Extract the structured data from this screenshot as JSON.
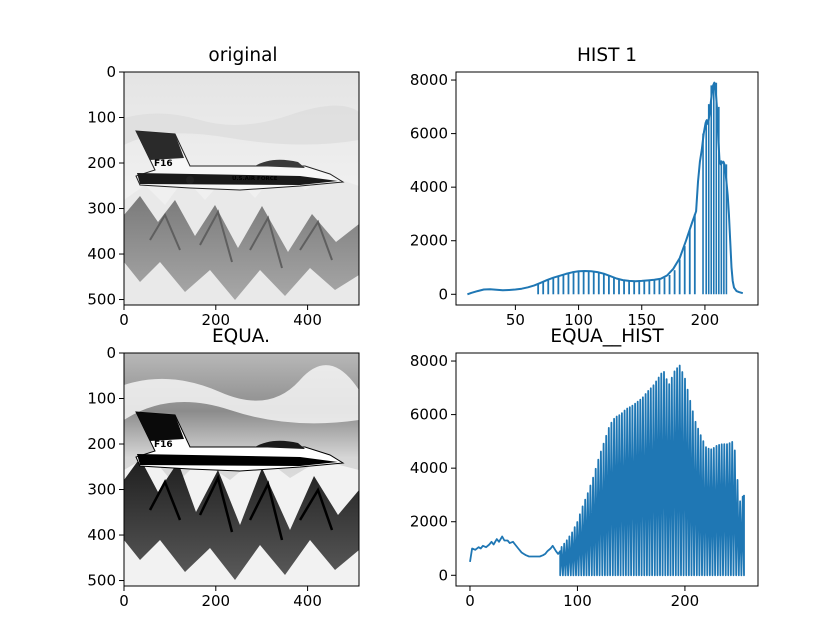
{
  "figure": {
    "background": "#ffffff",
    "line_color": "#1f77b4"
  },
  "chart_data": [
    {
      "type": "image",
      "title": "original",
      "image_content": "grayscale photo of an F-16 jet flying over snowy mountains (bright, low contrast)",
      "aircraft_text": "U.S.AIR FORCE",
      "tail_text": "F16",
      "xlim": [
        0,
        512
      ],
      "ylim": [
        512,
        0
      ],
      "xticks": [
        0,
        200,
        400
      ],
      "yticks": [
        0,
        100,
        200,
        300,
        400,
        500
      ],
      "tone": "light"
    },
    {
      "type": "line",
      "title": "HIST 1",
      "xlim": [
        3,
        242
      ],
      "ylim": [
        -400,
        8300
      ],
      "xticks": [
        50,
        100,
        150,
        200
      ],
      "yticks": [
        0,
        2000,
        4000,
        6000,
        8000
      ],
      "base_curve": [
        [
          12,
          0
        ],
        [
          15,
          50
        ],
        [
          20,
          120
        ],
        [
          25,
          180
        ],
        [
          30,
          190
        ],
        [
          35,
          170
        ],
        [
          40,
          150
        ],
        [
          45,
          160
        ],
        [
          50,
          180
        ],
        [
          55,
          210
        ],
        [
          60,
          260
        ],
        [
          65,
          330
        ],
        [
          70,
          430
        ],
        [
          75,
          530
        ],
        [
          80,
          620
        ],
        [
          85,
          690
        ],
        [
          90,
          760
        ],
        [
          95,
          820
        ],
        [
          100,
          860
        ],
        [
          105,
          870
        ],
        [
          110,
          860
        ],
        [
          115,
          830
        ],
        [
          120,
          770
        ],
        [
          125,
          680
        ],
        [
          130,
          590
        ],
        [
          135,
          530
        ],
        [
          140,
          500
        ],
        [
          145,
          490
        ],
        [
          150,
          500
        ],
        [
          155,
          520
        ],
        [
          160,
          540
        ],
        [
          165,
          580
        ],
        [
          170,
          700
        ],
        [
          175,
          950
        ],
        [
          180,
          1350
        ],
        [
          185,
          2000
        ],
        [
          190,
          2700
        ],
        [
          193,
          3100
        ]
      ],
      "spikes": [
        [
          68,
          400
        ],
        [
          72,
          480
        ],
        [
          76,
          550
        ],
        [
          80,
          620
        ],
        [
          84,
          680
        ],
        [
          88,
          740
        ],
        [
          92,
          790
        ],
        [
          96,
          830
        ],
        [
          100,
          860
        ],
        [
          104,
          870
        ],
        [
          108,
          860
        ],
        [
          112,
          840
        ],
        [
          116,
          800
        ],
        [
          120,
          760
        ],
        [
          124,
          700
        ],
        [
          128,
          620
        ],
        [
          132,
          560
        ],
        [
          136,
          520
        ],
        [
          140,
          500
        ],
        [
          144,
          490
        ],
        [
          148,
          495
        ],
        [
          152,
          505
        ],
        [
          156,
          520
        ],
        [
          160,
          540
        ],
        [
          164,
          570
        ],
        [
          168,
          620
        ],
        [
          172,
          720
        ],
        [
          176,
          900
        ],
        [
          180,
          1300
        ],
        [
          184,
          1800
        ],
        [
          188,
          2400
        ],
        [
          192,
          3000
        ]
      ],
      "peak_curve": [
        [
          193,
          3100
        ],
        [
          194.5,
          4200
        ],
        [
          196,
          4950
        ],
        [
          197.5,
          5400
        ],
        [
          199,
          6000
        ],
        [
          200.5,
          6400
        ],
        [
          201.5,
          6500
        ],
        [
          202.5,
          6350
        ],
        [
          203.5,
          6700
        ],
        [
          204.5,
          7100
        ],
        [
          205.5,
          7500
        ],
        [
          206.5,
          7800
        ],
        [
          207.5,
          7900
        ],
        [
          208.5,
          7600
        ],
        [
          209.5,
          7000
        ],
        [
          210.5,
          5900
        ],
        [
          211.5,
          5000
        ],
        [
          212.5,
          4850
        ],
        [
          213.5,
          4900
        ],
        [
          214.5,
          4950
        ],
        [
          215.5,
          4850
        ],
        [
          216.5,
          4450
        ],
        [
          218,
          3700
        ],
        [
          219,
          3000
        ],
        [
          220,
          2000
        ],
        [
          221,
          1000
        ],
        [
          222,
          500
        ],
        [
          223,
          250
        ],
        [
          225,
          120
        ],
        [
          227,
          80
        ],
        [
          230,
          40
        ]
      ],
      "peak_dips": [
        198.5,
        201,
        203,
        205,
        207,
        209,
        211,
        213,
        215,
        217
      ]
    },
    {
      "type": "image",
      "title": "EQUA.",
      "image_content": "histogram-equalized grayscale photo of the same F-16 (high contrast)",
      "aircraft_text": "U.S.AIR FORCE",
      "tail_text": "F16",
      "xlim": [
        0,
        512
      ],
      "ylim": [
        512,
        0
      ],
      "xticks": [
        0,
        200,
        400
      ],
      "yticks": [
        0,
        100,
        200,
        300,
        400,
        500
      ],
      "tone": "contrast"
    },
    {
      "type": "line",
      "title": "EQUA__HIST",
      "xlim": [
        -13,
        268
      ],
      "ylim": [
        -400,
        8300
      ],
      "xticks": [
        0,
        100,
        200
      ],
      "yticks": [
        0,
        2000,
        4000,
        6000,
        8000
      ],
      "noise_curve": [
        [
          0,
          500
        ],
        [
          2,
          1000
        ],
        [
          5,
          950
        ],
        [
          8,
          1050
        ],
        [
          10,
          1000
        ],
        [
          12,
          1100
        ],
        [
          15,
          1050
        ],
        [
          18,
          1150
        ],
        [
          20,
          1250
        ],
        [
          22,
          1150
        ],
        [
          25,
          1350
        ],
        [
          27,
          1250
        ],
        [
          30,
          1450
        ],
        [
          32,
          1300
        ],
        [
          35,
          1300
        ],
        [
          37,
          1200
        ],
        [
          40,
          1250
        ],
        [
          42,
          1150
        ],
        [
          45,
          1000
        ],
        [
          48,
          850
        ],
        [
          50,
          800
        ],
        [
          52,
          750
        ],
        [
          55,
          700
        ],
        [
          58,
          700
        ],
        [
          62,
          700
        ],
        [
          65,
          700
        ],
        [
          68,
          750
        ],
        [
          70,
          800
        ],
        [
          72,
          900
        ],
        [
          75,
          1000
        ],
        [
          77,
          1100
        ],
        [
          80,
          900
        ],
        [
          82,
          800
        ],
        [
          84,
          900
        ]
      ],
      "comb_envelope": [
        [
          84,
          1000
        ],
        [
          90,
          1300
        ],
        [
          95,
          1600
        ],
        [
          100,
          2000
        ],
        [
          105,
          2600
        ],
        [
          110,
          3100
        ],
        [
          115,
          3700
        ],
        [
          120,
          4400
        ],
        [
          125,
          5000
        ],
        [
          130,
          5600
        ],
        [
          135,
          5900
        ],
        [
          140,
          6000
        ],
        [
          145,
          6200
        ],
        [
          150,
          6300
        ],
        [
          155,
          6450
        ],
        [
          160,
          6600
        ],
        [
          165,
          6850
        ],
        [
          170,
          7050
        ],
        [
          175,
          7350
        ],
        [
          180,
          7650
        ],
        [
          185,
          7100
        ],
        [
          190,
          7600
        ],
        [
          195,
          7850
        ],
        [
          200,
          7350
        ],
        [
          205,
          6500
        ],
        [
          210,
          5700
        ],
        [
          215,
          5200
        ],
        [
          220,
          4750
        ],
        [
          225,
          4700
        ],
        [
          230,
          4850
        ],
        [
          235,
          4900
        ],
        [
          240,
          4900
        ],
        [
          245,
          5000
        ],
        [
          248,
          4300
        ],
        [
          250,
          2650
        ],
        [
          253,
          2900
        ],
        [
          255,
          3000
        ]
      ],
      "comb_tooth_count": 70,
      "comb_x_range": [
        84,
        255
      ]
    }
  ]
}
